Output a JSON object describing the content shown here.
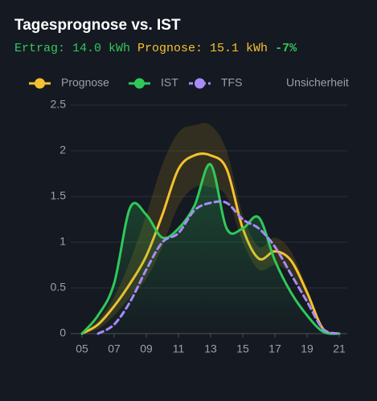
{
  "chart_data": {
    "type": "line",
    "title": "Tagesprognose vs. IST",
    "annotations": [
      {
        "text": "Ertrag: 14.0 kWh",
        "color": "#34c759"
      },
      {
        "text": "Prognose: 15.1 kWh",
        "color": "#f5c12e"
      },
      {
        "text": "-7%",
        "color": "#34c759"
      }
    ],
    "x": [
      5,
      6,
      7,
      8,
      9,
      10,
      11,
      12,
      13,
      14,
      15,
      16,
      17,
      18,
      19,
      20,
      21
    ],
    "series": [
      {
        "name": "Prognose",
        "color": "#f5c12e",
        "dashed": false,
        "values": [
          0,
          0.1,
          0.3,
          0.55,
          0.85,
          1.3,
          1.8,
          1.95,
          1.95,
          1.8,
          1.15,
          0.82,
          0.9,
          0.8,
          0.45,
          0.05,
          0
        ]
      },
      {
        "name": "IST",
        "color": "#2fc95a",
        "dashed": false,
        "fill": true,
        "values": [
          0,
          0.2,
          0.55,
          1.38,
          1.3,
          1.05,
          1.15,
          1.4,
          1.85,
          1.15,
          1.15,
          1.27,
          0.8,
          0.45,
          0.2,
          0.02,
          0
        ]
      },
      {
        "name": "TFS",
        "color": "#a78bfa",
        "dashed": true,
        "values": [
          null,
          0,
          0.1,
          0.35,
          0.7,
          1.0,
          1.1,
          1.35,
          1.43,
          1.43,
          1.25,
          1.15,
          0.95,
          0.65,
          0.35,
          0.05,
          0
        ]
      }
    ],
    "band": {
      "name": "Unsicherheit",
      "color": "#6b5a1e",
      "upper": [
        0,
        0.15,
        0.4,
        0.8,
        1.3,
        1.85,
        2.2,
        2.28,
        2.28,
        2.0,
        1.3,
        0.95,
        1.05,
        0.9,
        0.5,
        0.08,
        0
      ],
      "lower": [
        0,
        0.05,
        0.2,
        0.4,
        0.6,
        0.95,
        1.4,
        1.6,
        1.6,
        1.5,
        1.0,
        0.7,
        0.75,
        0.65,
        0.35,
        0.02,
        0
      ]
    },
    "xlim": [
      5,
      21
    ],
    "xticks": [
      {
        "value": 5,
        "label": "05"
      },
      {
        "value": 7,
        "label": "07"
      },
      {
        "value": 9,
        "label": "09"
      },
      11,
      13,
      15,
      17,
      19,
      21
    ],
    "ylim": [
      0,
      2.5
    ],
    "yticks": [
      0,
      0.5,
      1,
      1.5,
      2,
      2.5
    ],
    "grid": true,
    "legend": "top"
  }
}
